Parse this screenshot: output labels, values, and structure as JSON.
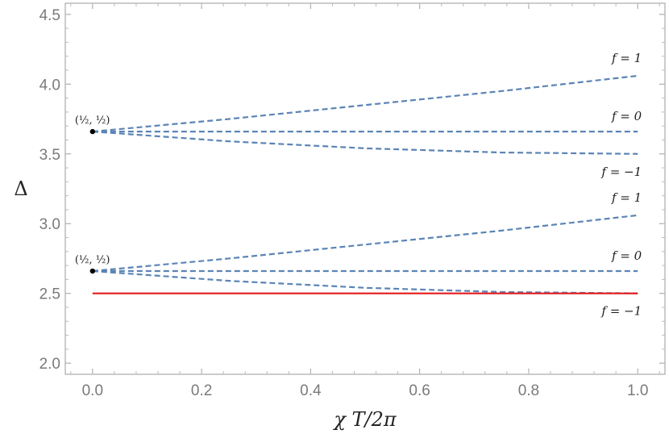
{
  "chart_data": {
    "type": "line",
    "xlabel": "χ T/2π",
    "ylabel": "Δ",
    "xlim": [
      -0.05,
      1.05
    ],
    "ylim": [
      1.92,
      4.58
    ],
    "x_ticks": [
      "0.0",
      "0.2",
      "0.4",
      "0.6",
      "0.8",
      "1.0"
    ],
    "y_ticks": [
      "2.0",
      "2.5",
      "3.0",
      "3.5",
      "4.0",
      "4.5"
    ],
    "grid": false,
    "series": [
      {
        "label": "f = 1",
        "style": "dashed",
        "color": "#5b84b5",
        "x": [
          0,
          0.25,
          0.5,
          0.75,
          1.0
        ],
        "y": [
          3.66,
          3.75,
          3.85,
          3.95,
          4.06
        ]
      },
      {
        "label": "f = 0",
        "style": "dashed",
        "color": "#5b84b5",
        "x": [
          0,
          0.25,
          0.5,
          0.75,
          1.0
        ],
        "y": [
          3.66,
          3.66,
          3.66,
          3.66,
          3.66
        ]
      },
      {
        "label": "f = −1",
        "style": "dashed",
        "color": "#5b84b5",
        "x": [
          0,
          0.25,
          0.5,
          0.75,
          1.0
        ],
        "y": [
          3.66,
          3.59,
          3.54,
          3.51,
          3.5
        ]
      },
      {
        "label": "f = 1",
        "style": "dashed",
        "color": "#5b84b5",
        "x": [
          0,
          0.25,
          0.5,
          0.75,
          1.0
        ],
        "y": [
          2.66,
          2.75,
          2.85,
          2.95,
          3.06
        ]
      },
      {
        "label": "f = 0",
        "style": "dashed",
        "color": "#5b84b5",
        "x": [
          0,
          0.25,
          0.5,
          0.75,
          1.0
        ],
        "y": [
          2.66,
          2.66,
          2.66,
          2.66,
          2.66
        ]
      },
      {
        "label": "f = −1",
        "style": "dashed",
        "color": "#5b84b5",
        "x": [
          0,
          0.25,
          0.5,
          0.75,
          1.0
        ],
        "y": [
          2.66,
          2.59,
          2.54,
          2.51,
          2.5
        ]
      },
      {
        "label": "",
        "style": "solid",
        "color": "#e41a1c",
        "x": [
          0,
          1.0
        ],
        "y": [
          2.5,
          2.5
        ]
      }
    ],
    "points": [
      {
        "x": 0,
        "y": 3.66,
        "label": "(½, ½)"
      },
      {
        "x": 0,
        "y": 2.66,
        "label": "(½, ½)"
      }
    ]
  }
}
